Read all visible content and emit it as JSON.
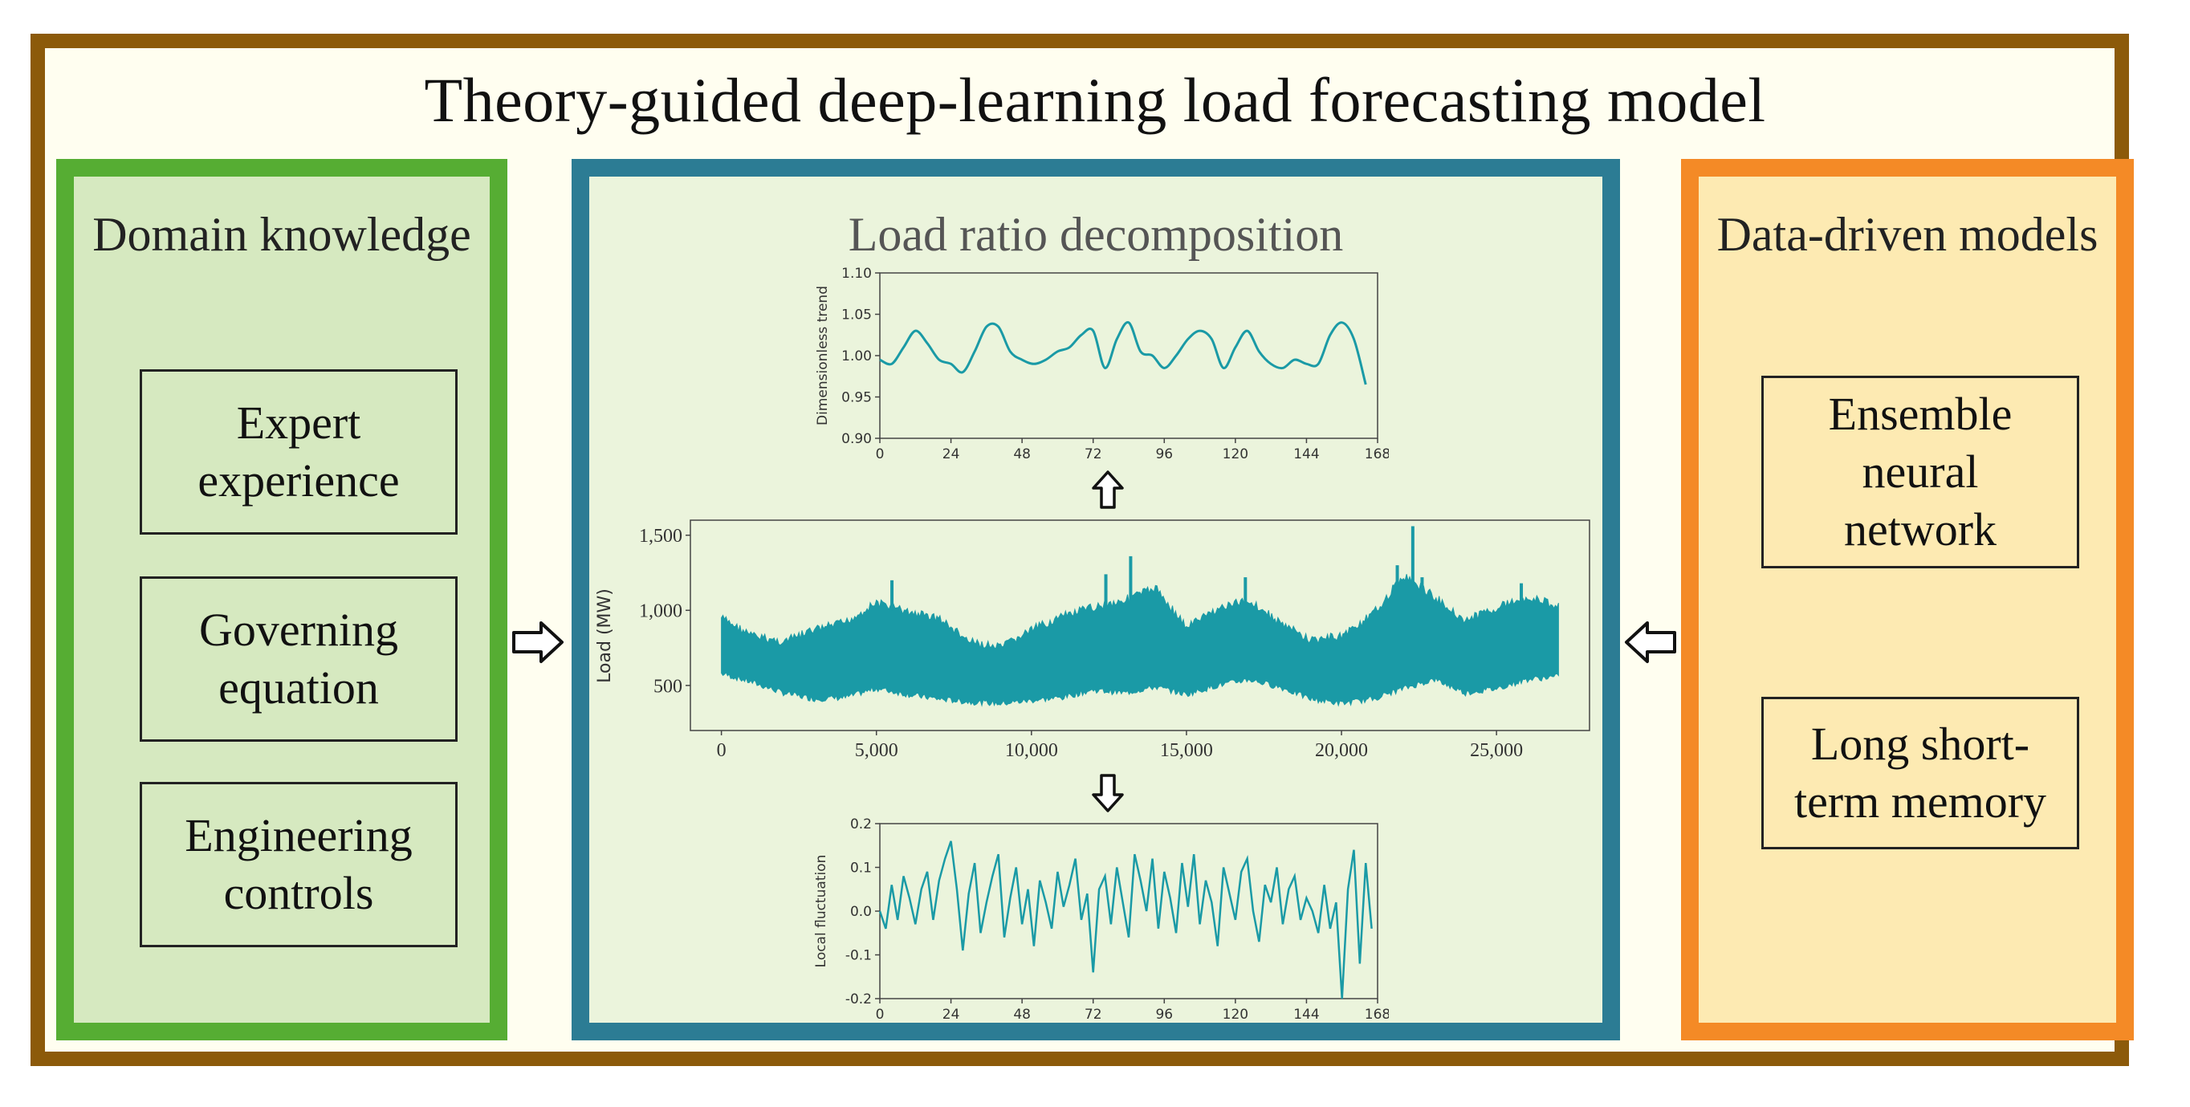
{
  "title": "Theory-guided deep-learning load forecasting model",
  "left_panel": {
    "title": "Domain knowledge",
    "items": [
      "Expert\nexperience",
      "Governing\nequation",
      "Engineering\ncontrols"
    ]
  },
  "center_panel": {
    "title": "Load ratio decomposition"
  },
  "right_panel": {
    "title": "Data-driven models",
    "items": [
      "Ensemble\nneural\nnetwork",
      "Long short-\nterm memory"
    ]
  },
  "colors": {
    "frame": "#8c5a0a",
    "left_border": "#56ad33",
    "center_border": "#2c7c94",
    "right_border": "#f48a26",
    "series": "#1a9aa6"
  },
  "chart_data": [
    {
      "type": "line",
      "title": "",
      "xlabel": "",
      "ylabel": "Dimensionless trend",
      "xlim": [
        0,
        168
      ],
      "ylim": [
        0.9,
        1.1
      ],
      "xticks": [
        "0",
        "24",
        "48",
        "72",
        "96",
        "120",
        "144",
        "168"
      ],
      "yticks": [
        "0.90",
        "0.95",
        "1.00",
        "1.05",
        "1.10"
      ],
      "x": [
        0,
        4,
        8,
        12,
        16,
        20,
        24,
        28,
        32,
        36,
        40,
        44,
        48,
        52,
        56,
        60,
        64,
        68,
        72,
        76,
        80,
        84,
        88,
        92,
        96,
        100,
        104,
        108,
        112,
        116,
        120,
        124,
        128,
        132,
        136,
        140,
        144,
        148,
        152,
        156,
        160,
        164
      ],
      "values": [
        0.995,
        0.99,
        1.01,
        1.03,
        1.015,
        0.995,
        0.99,
        0.98,
        1.005,
        1.035,
        1.035,
        1.005,
        0.995,
        0.99,
        0.995,
        1.005,
        1.01,
        1.025,
        1.03,
        0.985,
        1.02,
        1.04,
        1.005,
        1.0,
        0.985,
        1.0,
        1.02,
        1.03,
        1.02,
        0.985,
        1.01,
        1.03,
        1.005,
        0.99,
        0.985,
        0.995,
        0.99,
        0.99,
        1.025,
        1.04,
        1.02,
        0.965
      ]
    },
    {
      "type": "line",
      "title": "",
      "xlabel": "",
      "ylabel": "Load (MW)",
      "xlim": [
        -1000,
        28000
      ],
      "ylim": [
        200,
        1600
      ],
      "xticks": [
        "0",
        "5,000",
        "10,000",
        "15,000",
        "20,000",
        "25,000"
      ],
      "yticks": [
        "500",
        "1,000",
        "1,500"
      ],
      "x": [
        0,
        1000,
        2000,
        3000,
        4000,
        5000,
        6000,
        7000,
        8000,
        9000,
        10000,
        11000,
        12000,
        13000,
        14000,
        15000,
        16000,
        17000,
        18000,
        19000,
        20000,
        21000,
        22000,
        23000,
        24000,
        25000,
        26000,
        27000
      ],
      "upper": [
        980,
        860,
        820,
        900,
        950,
        1080,
        1020,
        980,
        820,
        780,
        900,
        990,
        1050,
        1100,
        1180,
        920,
        1040,
        1100,
        950,
        830,
        860,
        1000,
        1260,
        1120,
        960,
        1050,
        1120,
        1060
      ],
      "lower": [
        560,
        500,
        430,
        390,
        400,
        460,
        420,
        390,
        370,
        360,
        380,
        400,
        450,
        430,
        470,
        420,
        480,
        520,
        470,
        390,
        360,
        390,
        460,
        520,
        430,
        460,
        520,
        540
      ]
    },
    {
      "type": "line",
      "title": "",
      "xlabel": "",
      "ylabel": "Local fluctuation",
      "xlim": [
        0,
        168
      ],
      "ylim": [
        -0.2,
        0.2
      ],
      "xticks": [
        "0",
        "24",
        "48",
        "72",
        "96",
        "120",
        "144",
        "168"
      ],
      "yticks": [
        "-0.2",
        "-0.1",
        "0.0",
        "0.1",
        "0.2"
      ],
      "x": [
        0,
        2,
        4,
        6,
        8,
        10,
        12,
        14,
        16,
        18,
        20,
        22,
        24,
        26,
        28,
        30,
        32,
        34,
        36,
        38,
        40,
        42,
        44,
        46,
        48,
        50,
        52,
        54,
        56,
        58,
        60,
        62,
        64,
        66,
        68,
        70,
        72,
        74,
        76,
        78,
        80,
        82,
        84,
        86,
        88,
        90,
        92,
        94,
        96,
        98,
        100,
        102,
        104,
        106,
        108,
        110,
        112,
        114,
        116,
        118,
        120,
        122,
        124,
        126,
        128,
        130,
        132,
        134,
        136,
        138,
        140,
        142,
        144,
        146,
        148,
        150,
        152,
        154,
        156,
        158,
        160,
        162,
        164,
        166
      ],
      "values": [
        0.0,
        -0.04,
        0.06,
        -0.02,
        0.08,
        0.03,
        -0.03,
        0.05,
        0.09,
        -0.02,
        0.07,
        0.12,
        0.16,
        0.05,
        -0.09,
        0.04,
        0.11,
        -0.05,
        0.02,
        0.08,
        0.13,
        -0.06,
        0.03,
        0.1,
        -0.03,
        0.05,
        -0.08,
        0.07,
        0.02,
        -0.04,
        0.09,
        0.01,
        0.06,
        0.12,
        -0.02,
        0.04,
        -0.14,
        0.05,
        0.08,
        -0.03,
        0.1,
        0.02,
        -0.06,
        0.13,
        0.07,
        0.0,
        0.12,
        -0.04,
        0.09,
        0.03,
        -0.05,
        0.11,
        0.01,
        0.13,
        -0.03,
        0.07,
        0.02,
        -0.08,
        0.1,
        0.04,
        -0.02,
        0.09,
        0.12,
        0.0,
        -0.07,
        0.06,
        0.02,
        0.1,
        -0.03,
        0.05,
        0.08,
        -0.02,
        0.03,
        0.0,
        -0.05,
        0.06,
        -0.04,
        0.02,
        -0.2,
        0.05,
        0.14,
        -0.12,
        0.11,
        -0.04
      ]
    }
  ]
}
